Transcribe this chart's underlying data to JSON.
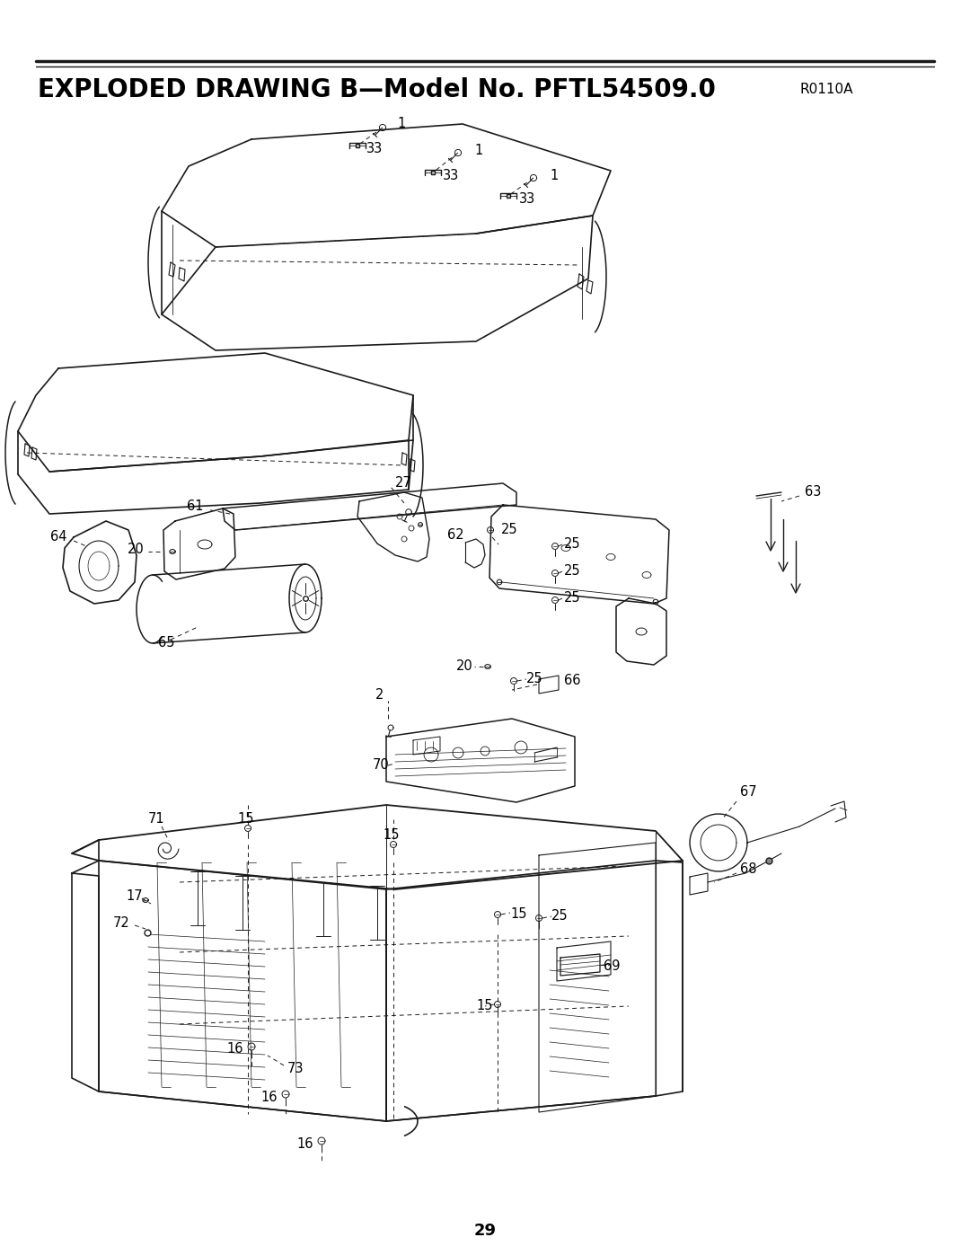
{
  "title": "EXPLODED DRAWING B—Model No. PFTL54509.0",
  "title_revision": "R0110A",
  "page_number": "29",
  "bg": "#ffffff",
  "lc": "#1a1a1a",
  "title_fontsize": 20,
  "revision_fontsize": 11,
  "label_fontsize": 10.5,
  "page_num_fontsize": 13
}
